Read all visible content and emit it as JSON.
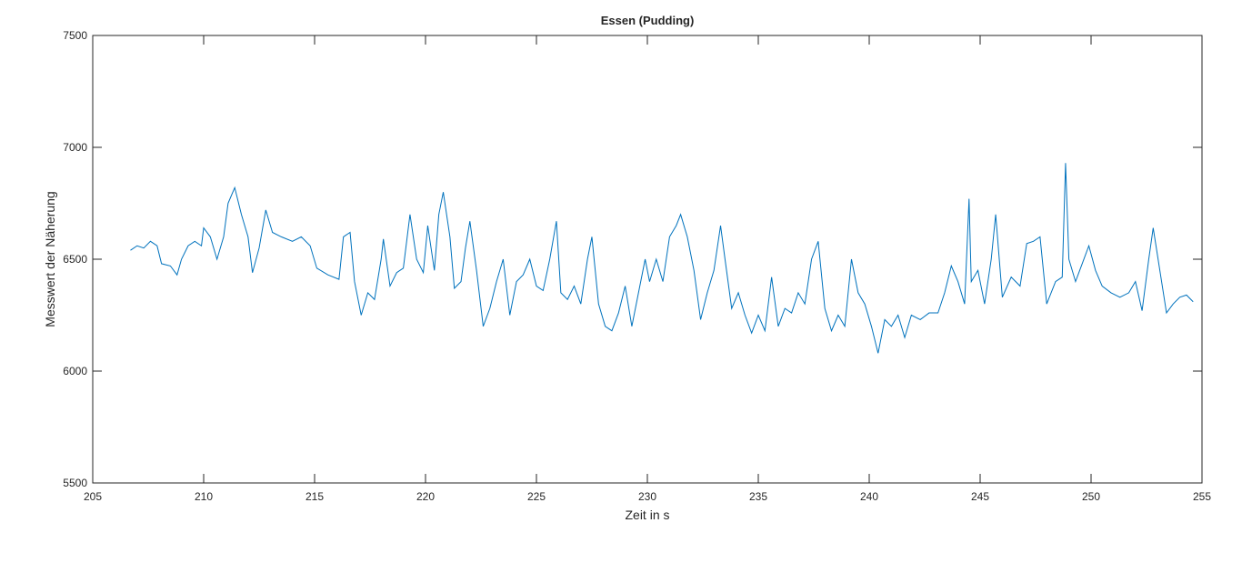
{
  "chart_data": {
    "type": "line",
    "title": "Essen (Pudding)",
    "x_label": "Zeit in s",
    "y_label": "Messwert der Näherung",
    "x": [
      206.7,
      207.0,
      207.3,
      207.6,
      207.9,
      208.1,
      208.5,
      208.8,
      209.0,
      209.3,
      209.6,
      209.9,
      210.0,
      210.3,
      210.6,
      210.9,
      211.1,
      211.4,
      211.7,
      212.0,
      212.2,
      212.5,
      212.8,
      213.1,
      213.5,
      214.0,
      214.4,
      214.8,
      215.1,
      215.6,
      216.1,
      216.3,
      216.6,
      216.8,
      217.1,
      217.4,
      217.7,
      218.0,
      218.1,
      218.4,
      218.7,
      219.0,
      219.3,
      219.6,
      219.9,
      220.1,
      220.4,
      220.6,
      220.8,
      221.1,
      221.3,
      221.6,
      221.8,
      222.0,
      222.3,
      222.6,
      222.9,
      223.2,
      223.5,
      223.8,
      224.1,
      224.4,
      224.7,
      225.0,
      225.3,
      225.6,
      225.9,
      226.1,
      226.4,
      226.7,
      227.0,
      227.3,
      227.5,
      227.8,
      228.1,
      228.4,
      228.7,
      229.0,
      229.3,
      229.6,
      229.9,
      230.1,
      230.4,
      230.7,
      231.0,
      231.3,
      231.5,
      231.8,
      232.1,
      232.4,
      232.7,
      233.0,
      233.3,
      233.5,
      233.8,
      234.1,
      234.4,
      234.7,
      235.0,
      235.3,
      235.6,
      235.9,
      236.2,
      236.5,
      236.8,
      237.1,
      237.4,
      237.7,
      238.0,
      238.3,
      238.6,
      238.9,
      239.2,
      239.5,
      239.8,
      240.1,
      240.4,
      240.7,
      241.0,
      241.3,
      241.6,
      241.9,
      242.3,
      242.7,
      243.1,
      243.4,
      243.7,
      244.0,
      244.3,
      244.5,
      244.6,
      244.9,
      245.2,
      245.5,
      245.7,
      246.0,
      246.4,
      246.8,
      247.1,
      247.4,
      247.7,
      248.0,
      248.4,
      248.7,
      248.85,
      249.0,
      249.3,
      249.6,
      249.9,
      250.2,
      250.5,
      250.9,
      251.3,
      251.7,
      252.0,
      252.3,
      252.6,
      252.8,
      253.1,
      253.4,
      253.7,
      254.0,
      254.3,
      254.6
    ],
    "series": [
      {
        "color": "#0072bd",
        "values": [
          6540,
          6560,
          6550,
          6580,
          6560,
          6480,
          6470,
          6430,
          6500,
          6560,
          6580,
          6560,
          6640,
          6600,
          6500,
          6600,
          6750,
          6820,
          6700,
          6600,
          6440,
          6550,
          6720,
          6620,
          6600,
          6580,
          6600,
          6560,
          6460,
          6430,
          6410,
          6600,
          6620,
          6400,
          6250,
          6350,
          6320,
          6500,
          6590,
          6380,
          6440,
          6460,
          6700,
          6500,
          6440,
          6650,
          6450,
          6700,
          6800,
          6600,
          6370,
          6400,
          6550,
          6670,
          6450,
          6200,
          6280,
          6400,
          6500,
          6250,
          6400,
          6430,
          6500,
          6380,
          6360,
          6500,
          6670,
          6350,
          6320,
          6380,
          6300,
          6500,
          6600,
          6300,
          6200,
          6180,
          6260,
          6380,
          6200,
          6350,
          6500,
          6400,
          6500,
          6400,
          6600,
          6650,
          6700,
          6600,
          6450,
          6230,
          6350,
          6450,
          6650,
          6500,
          6280,
          6350,
          6250,
          6170,
          6250,
          6180,
          6420,
          6200,
          6280,
          6260,
          6350,
          6300,
          6500,
          6580,
          6280,
          6180,
          6250,
          6200,
          6500,
          6350,
          6300,
          6200,
          6080,
          6230,
          6200,
          6250,
          6150,
          6250,
          6230,
          6260,
          6260,
          6350,
          6470,
          6400,
          6300,
          6770,
          6400,
          6450,
          6300,
          6500,
          6700,
          6330,
          6420,
          6380,
          6570,
          6580,
          6600,
          6300,
          6400,
          6420,
          6930,
          6500,
          6400,
          6480,
          6560,
          6450,
          6380,
          6350,
          6330,
          6350,
          6400,
          6270,
          6500,
          6640,
          6450,
          6260,
          6300,
          6330,
          6340,
          6310
        ]
      }
    ],
    "xlim": [
      205,
      255
    ],
    "xticks": [
      205,
      210,
      215,
      220,
      225,
      230,
      235,
      240,
      245,
      250,
      255
    ],
    "ylim": [
      5500,
      7500
    ],
    "yticks": [
      5500,
      6000,
      6500,
      7000,
      7500
    ],
    "box": true
  }
}
